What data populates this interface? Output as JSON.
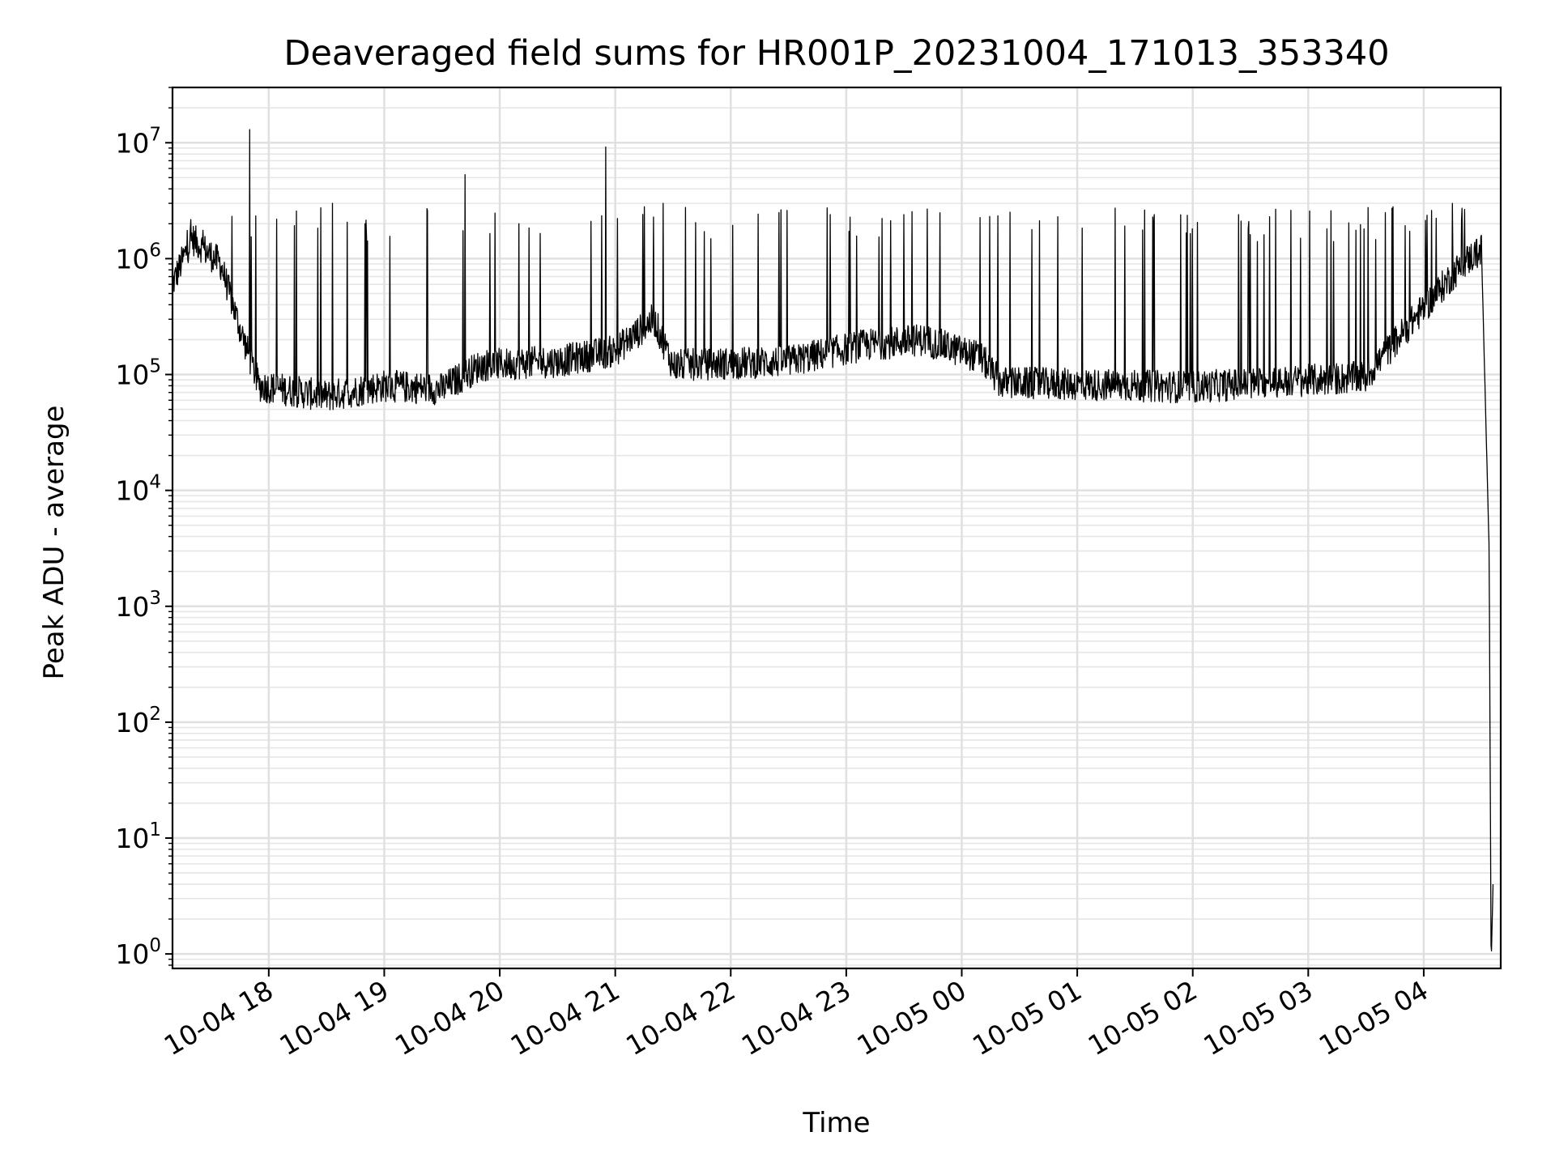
{
  "chart_data": {
    "type": "line",
    "title": "Deaveraged field sums for HR001P_20231004_171013_353340",
    "xlabel": "Time",
    "ylabel": "Peak ADU - average",
    "yscale": "log",
    "xlim": [
      "2023-10-04 17:10",
      "2023-10-05 04:40"
    ],
    "ylim": [
      0.75,
      30000000
    ],
    "grid": true,
    "x_ticks": [
      "10-04 18",
      "10-04 19",
      "10-04 20",
      "10-04 21",
      "10-04 22",
      "10-04 23",
      "10-05 00",
      "10-05 01",
      "10-05 02",
      "10-05 03",
      "10-05 04"
    ],
    "y_ticks": [
      {
        "base": "10",
        "exp": "0"
      },
      {
        "base": "10",
        "exp": "1"
      },
      {
        "base": "10",
        "exp": "2"
      },
      {
        "base": "10",
        "exp": "3"
      },
      {
        "base": "10",
        "exp": "4"
      },
      {
        "base": "10",
        "exp": "5"
      },
      {
        "base": "10",
        "exp": "6"
      },
      {
        "base": "10",
        "exp": "7"
      }
    ],
    "series": [
      {
        "color": "#000000",
        "baseline": [
          [
            "2023-10-04 17:10",
            600000
          ],
          [
            "2023-10-04 17:20",
            1500000
          ],
          [
            "2023-10-04 17:35",
            900000
          ],
          [
            "2023-10-04 17:45",
            250000
          ],
          [
            "2023-10-04 17:55",
            80000
          ],
          [
            "2023-10-04 18:30",
            65000
          ],
          [
            "2023-10-04 19:00",
            80000
          ],
          [
            "2023-10-04 19:30",
            75000
          ],
          [
            "2023-10-04 19:50",
            120000
          ],
          [
            "2023-10-04 20:30",
            130000
          ],
          [
            "2023-10-04 21:00",
            160000
          ],
          [
            "2023-10-04 21:20",
            300000
          ],
          [
            "2023-10-04 21:30",
            120000
          ],
          [
            "2023-10-04 22:30",
            130000
          ],
          [
            "2023-10-04 23:10",
            180000
          ],
          [
            "2023-10-04 23:40",
            200000
          ],
          [
            "2023-10-05 00:10",
            140000
          ],
          [
            "2023-10-05 00:20",
            85000
          ],
          [
            "2023-10-05 02:00",
            78000
          ],
          [
            "2023-10-05 03:30",
            95000
          ],
          [
            "2023-10-05 03:55",
            300000
          ],
          [
            "2023-10-05 04:20",
            900000
          ],
          [
            "2023-10-05 04:30",
            1200000
          ],
          [
            "2023-10-05 04:34",
            3000
          ],
          [
            "2023-10-05 04:35",
            0.75
          ],
          [
            "2023-10-05 04:36",
            4
          ]
        ],
        "spikes": [
          [
            "2023-10-04 17:50",
            13000000
          ],
          [
            "2023-10-04 20:55",
            9200000
          ],
          [
            "2023-10-04 19:42",
            5300000
          ],
          [
            "2023-10-04 18:33",
            3000000
          ],
          [
            "2023-10-04 21:15",
            2800000
          ],
          [
            "2023-10-04 21:25",
            3000000
          ],
          [
            "2023-10-04 20:10",
            2000000
          ],
          [
            "2023-10-04 18:50",
            2000000
          ],
          [
            "2023-10-04 22:25",
            2500000
          ],
          [
            "2023-10-04 23:30",
            2400000
          ],
          [
            "2023-10-05 00:50",
            2300000
          ],
          [
            "2023-10-05 01:40",
            2400000
          ],
          [
            "2023-10-05 02:40",
            2300000
          ],
          [
            "2023-10-05 03:40",
            2500000
          ],
          [
            "2023-10-05 04:15",
            3000000
          ]
        ]
      }
    ]
  }
}
